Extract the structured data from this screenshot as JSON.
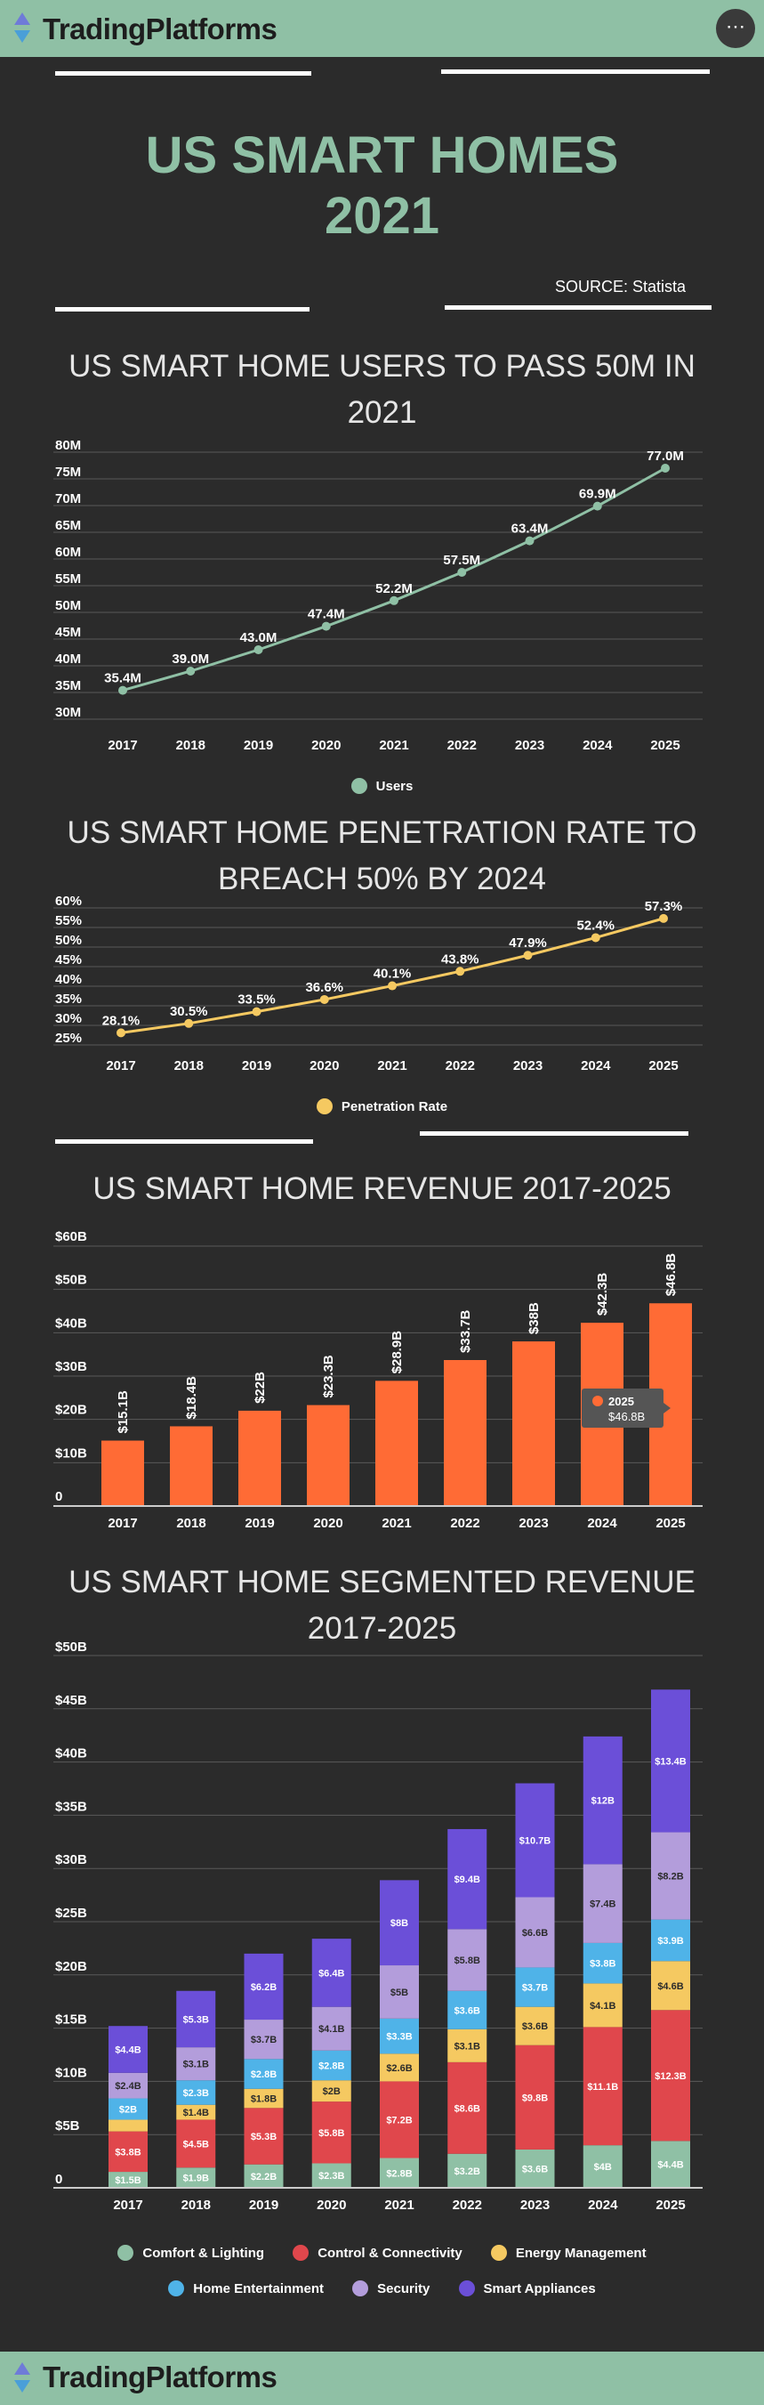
{
  "brand": {
    "name": "TradingPlatforms",
    "menu_icon": "ellipsis-icon"
  },
  "header": {
    "title_line1": "US SMART HOMES",
    "title_line2": "2021",
    "source": "SOURCE: Statista"
  },
  "colors": {
    "accent_green": "#8fc0a5",
    "users_line": "#8fc0a5",
    "penetration_line": "#f5c961",
    "revenue_bar": "#ff6b35",
    "comfort": "#8fc0a5",
    "control": "#e0474c",
    "energy": "#f5c961",
    "entertainment": "#4fb3e8",
    "security": "#b39ddb",
    "appliances": "#6b4fd8"
  },
  "chart_data": [
    {
      "id": "users",
      "type": "line",
      "title": "US SMART HOME USERS TO PASS 50M IN 2021",
      "x": [
        "2017",
        "2018",
        "2019",
        "2020",
        "2021",
        "2022",
        "2023",
        "2024",
        "2025"
      ],
      "series": [
        {
          "name": "Users",
          "values": [
            35.4,
            39.0,
            43.0,
            47.4,
            52.2,
            57.5,
            63.4,
            69.9,
            77.0
          ]
        }
      ],
      "data_labels": [
        "35.4M",
        "39.0M",
        "43.0M",
        "47.4M",
        "52.2M",
        "57.5M",
        "63.4M",
        "69.9M",
        "77.0M"
      ],
      "yticks": [
        30,
        35,
        40,
        45,
        50,
        55,
        60,
        65,
        70,
        75,
        80
      ],
      "ytick_labels": [
        "30M",
        "35M",
        "40M",
        "45M",
        "50M",
        "55M",
        "60M",
        "65M",
        "70M",
        "75M",
        "80M"
      ],
      "ylim": [
        30,
        80
      ],
      "legend": [
        "Users"
      ]
    },
    {
      "id": "penetration",
      "type": "line",
      "title": "US SMART HOME PENETRATION RATE TO BREACH 50% BY 2024",
      "x": [
        "2017",
        "2018",
        "2019",
        "2020",
        "2021",
        "2022",
        "2023",
        "2024",
        "2025"
      ],
      "series": [
        {
          "name": "Penetration Rate",
          "values": [
            28.1,
            30.5,
            33.5,
            36.6,
            40.1,
            43.8,
            47.9,
            52.4,
            57.3
          ]
        }
      ],
      "data_labels": [
        "28.1%",
        "30.5%",
        "33.5%",
        "36.6%",
        "40.1%",
        "43.8%",
        "47.9%",
        "52.4%",
        "57.3%"
      ],
      "yticks": [
        25,
        30,
        35,
        40,
        45,
        50,
        55,
        60
      ],
      "ytick_labels": [
        "25%",
        "30%",
        "35%",
        "40%",
        "45%",
        "50%",
        "55%",
        "60%"
      ],
      "ylim": [
        25,
        60
      ],
      "legend": [
        "Penetration Rate"
      ]
    },
    {
      "id": "revenue",
      "type": "bar",
      "title": "US SMART HOME REVENUE 2017-2025",
      "categories": [
        "2017",
        "2018",
        "2019",
        "2020",
        "2021",
        "2022",
        "2023",
        "2024",
        "2025"
      ],
      "values": [
        15.1,
        18.4,
        22,
        23.3,
        28.9,
        33.7,
        38,
        42.3,
        46.8
      ],
      "data_labels": [
        "$15.1B",
        "$18.4B",
        "$22B",
        "$23.3B",
        "$28.9B",
        "$33.7B",
        "$38B",
        "$42.3B",
        "$46.8B"
      ],
      "yticks": [
        0,
        10,
        20,
        30,
        40,
        50,
        60
      ],
      "ytick_labels": [
        "0",
        "$10B",
        "$20B",
        "$30B",
        "$40B",
        "$50B",
        "$60B"
      ],
      "ylim": [
        0,
        60
      ],
      "tooltip": {
        "title": "2025",
        "value": "$46.8B"
      }
    },
    {
      "id": "segmented",
      "type": "bar",
      "stacked": true,
      "title": "US SMART HOME SEGMENTED REVENUE 2017-2025",
      "categories": [
        "2017",
        "2018",
        "2019",
        "2020",
        "2021",
        "2022",
        "2023",
        "2024",
        "2025"
      ],
      "series": [
        {
          "name": "Comfort & Lighting",
          "values": [
            1.5,
            1.9,
            2.2,
            2.3,
            2.8,
            3.2,
            3.6,
            4,
            4.4
          ],
          "labels": [
            "$1.5B",
            "$1.9B",
            "$2.2B",
            "$2.3B",
            "$2.8B",
            "$3.2B",
            "$3.6B",
            "$4B",
            "$4.4B"
          ]
        },
        {
          "name": "Control & Connectivity",
          "values": [
            3.8,
            4.5,
            5.3,
            5.8,
            7.2,
            8.6,
            9.8,
            11.1,
            12.3
          ],
          "labels": [
            "$3.8B",
            "$4.5B",
            "$5.3B",
            "$5.8B",
            "$7.2B",
            "$8.6B",
            "$9.8B",
            "$11.1B",
            "$12.3B"
          ]
        },
        {
          "name": "Energy Management",
          "values": [
            1.1,
            1.4,
            1.8,
            2,
            2.6,
            3.1,
            3.6,
            4.1,
            4.6
          ],
          "labels": [
            "",
            "$1.4B",
            "$1.8B",
            "$2B",
            "$2.6B",
            "$3.1B",
            "$3.6B",
            "$4.1B",
            "$4.6B"
          ]
        },
        {
          "name": "Home Entertainment",
          "values": [
            2,
            2.3,
            2.8,
            2.8,
            3.3,
            3.6,
            3.7,
            3.8,
            3.9
          ],
          "labels": [
            "$2B",
            "$2.3B",
            "$2.8B",
            "$2.8B",
            "$3.3B",
            "$3.6B",
            "$3.7B",
            "$3.8B",
            "$3.9B"
          ]
        },
        {
          "name": "Security",
          "values": [
            2.4,
            3.1,
            3.7,
            4.1,
            5,
            5.8,
            6.6,
            7.4,
            8.2
          ],
          "labels": [
            "$2.4B",
            "$3.1B",
            "$3.7B",
            "$4.1B",
            "$5B",
            "$5.8B",
            "$6.6B",
            "$7.4B",
            "$8.2B"
          ]
        },
        {
          "name": "Smart Appliances",
          "values": [
            4.4,
            5.3,
            6.2,
            6.4,
            8,
            9.4,
            10.7,
            12,
            13.4
          ],
          "labels": [
            "$4.4B",
            "$5.3B",
            "$6.2B",
            "$6.4B",
            "$8B",
            "$9.4B",
            "$10.7B",
            "$12B",
            "$13.4B"
          ]
        }
      ],
      "yticks": [
        0,
        5,
        10,
        15,
        20,
        25,
        30,
        35,
        40,
        45,
        50
      ],
      "ytick_labels": [
        "0",
        "$5B",
        "$10B",
        "$15B",
        "$20B",
        "$25B",
        "$30B",
        "$35B",
        "$40B",
        "$45B",
        "$50B"
      ],
      "ylim": [
        0,
        50
      ],
      "legend_row1": [
        "Comfort & Lighting",
        "Control & Connectivity",
        "Energy Management"
      ],
      "legend_row2": [
        "Home Entertainment",
        "Security",
        "Smart Appliances"
      ]
    }
  ]
}
